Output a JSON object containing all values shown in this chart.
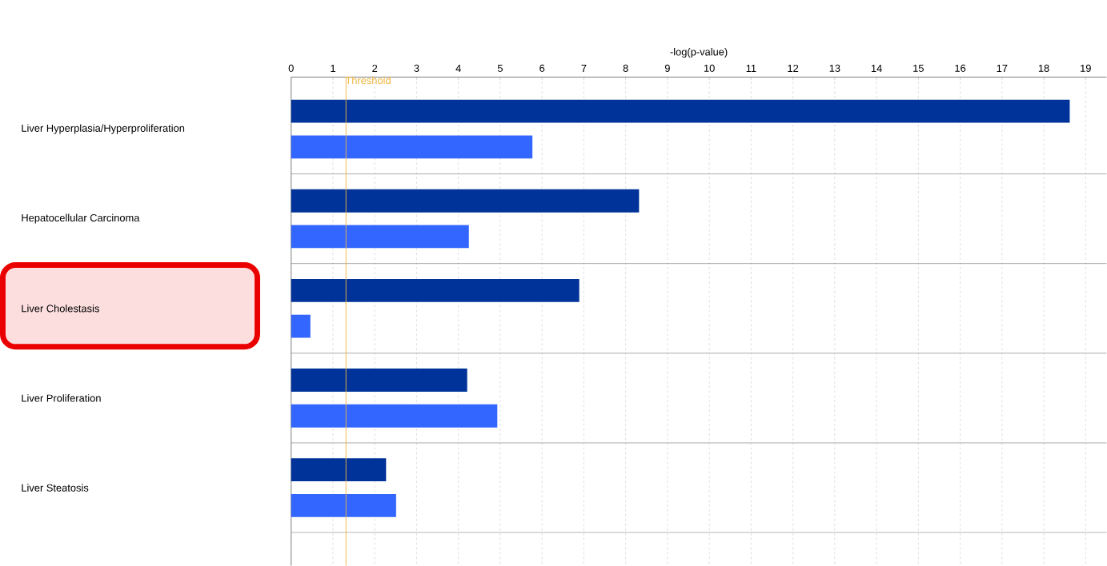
{
  "chart_data": {
    "type": "bar",
    "orientation": "horizontal",
    "xlabel": "-log(p-value)",
    "categories": [
      "Liver Hyperplasia/Hyperproliferation",
      "Hepatocellular Carcinoma",
      "Liver Cholestasis",
      "Liver Proliferation",
      "Liver Steatosis"
    ],
    "series": [
      {
        "color": "#003399",
        "values": [
          18.62,
          8.32,
          6.89,
          4.21,
          2.27
        ]
      },
      {
        "color": "#3366ff",
        "values": [
          5.77,
          4.25,
          0.46,
          4.93,
          2.51
        ]
      }
    ],
    "xlim": [
      0,
      19.5
    ],
    "xticks": [
      0,
      1,
      2,
      3,
      4,
      5,
      6,
      7,
      8,
      9,
      10,
      11,
      12,
      13,
      14,
      15,
      16,
      17,
      18,
      19
    ],
    "grid": true,
    "ref_lines": [
      {
        "axis": "x",
        "value": 1.31,
        "label": "Threshold",
        "color": "#f0b43c"
      }
    ]
  }
}
